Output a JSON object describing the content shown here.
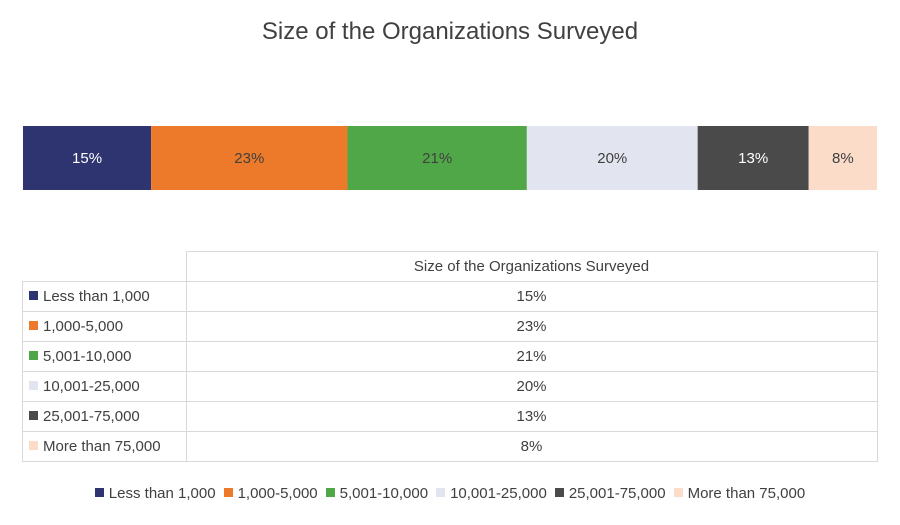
{
  "chart_data": {
    "type": "bar",
    "orientation": "horizontal-stacked-100",
    "title": "Size of the Organizations Surveyed",
    "series": [
      {
        "name": "Less than 1,000",
        "value": 15,
        "label": "15%",
        "color": "#2e3470"
      },
      {
        "name": "1,000-5,000",
        "value": 23,
        "label": "23%",
        "color": "#ed7a2a"
      },
      {
        "name": "5,001-10,000",
        "value": 21,
        "label": "21%",
        "color": "#50a747"
      },
      {
        "name": "10,001-25,000",
        "value": 20,
        "label": "20%",
        "color": "#e2e4ef"
      },
      {
        "name": "25,001-75,000",
        "value": 13,
        "label": "13%",
        "color": "#4a4a4a"
      },
      {
        "name": "More than 75,000",
        "value": 8,
        "label": "8%",
        "color": "#fbdcc8"
      }
    ],
    "data_table": {
      "header": "Size of the Organizations Surveyed"
    },
    "legend": "bottom",
    "grid": false
  }
}
